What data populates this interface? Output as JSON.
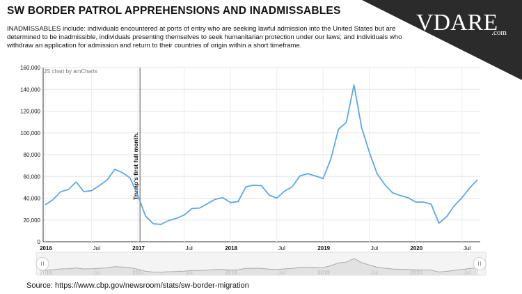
{
  "header": {
    "title": "SW BORDER PATROL APPREHENSIONS AND INADMISSABLES",
    "description": "INADMISSABLES include: individuals encountered at ports of entry who are seeking lawful admission into the United States but are determined to be inadmissible, individuals presenting themselves to seek humanitarian protection under our laws; and individuals who withdraw an application for admission and return to their countries of origin within a short timeframe."
  },
  "logo": {
    "text": "VDARE",
    "suffix": ".com",
    "background": "#2b2b2b"
  },
  "source": "Source: https://www.cbp.gov/newsroom/stats/sw-border-migration",
  "chart_data": {
    "type": "line",
    "credit": "JS chart by amCharts",
    "x": [
      "2016-01",
      "2016-02",
      "2016-03",
      "2016-04",
      "2016-05",
      "2016-06",
      "2016-07",
      "2016-08",
      "2016-09",
      "2016-10",
      "2016-11",
      "2016-12",
      "2017-01",
      "2017-02",
      "2017-03",
      "2017-04",
      "2017-05",
      "2017-06",
      "2017-07",
      "2017-08",
      "2017-09",
      "2017-10",
      "2017-11",
      "2017-12",
      "2018-01",
      "2018-02",
      "2018-03",
      "2018-04",
      "2018-05",
      "2018-06",
      "2018-07",
      "2018-08",
      "2018-09",
      "2018-10",
      "2018-11",
      "2018-12",
      "2019-01",
      "2019-02",
      "2019-03",
      "2019-04",
      "2019-05",
      "2019-06",
      "2019-07",
      "2019-08",
      "2019-09",
      "2019-10",
      "2019-11",
      "2019-12",
      "2020-01",
      "2020-02",
      "2020-03",
      "2020-04",
      "2020-05",
      "2020-06",
      "2020-07",
      "2020-08",
      "2020-09"
    ],
    "series": [
      {
        "values": [
          34000,
          38500,
          46000,
          48000,
          55000,
          46000,
          47000,
          51500,
          56500,
          66500,
          63500,
          58500,
          42500,
          23500,
          16500,
          16000,
          19500,
          21500,
          24500,
          30500,
          31000,
          35000,
          39000,
          40500,
          36000,
          37000,
          50500,
          52000,
          51500,
          43000,
          40000,
          46500,
          50500,
          60500,
          62500,
          60500,
          58000,
          76000,
          103500,
          109500,
          144000,
          104500,
          82000,
          62500,
          52500,
          45000,
          42500,
          40500,
          36500,
          36500,
          34500,
          17000,
          23000,
          33000,
          40500,
          49500,
          57000
        ],
        "color": "#5aa8e8"
      }
    ],
    "y_ticks": [
      "0",
      "20,000",
      "40,000",
      "60,000",
      "80,000",
      "100,000",
      "120,000",
      "140,000",
      "160,000"
    ],
    "ylim": [
      0,
      160000
    ],
    "x_ticks": [
      {
        "label": "2016",
        "at": "2016-01",
        "bold": true
      },
      {
        "label": "Jul",
        "at": "2016-07",
        "bold": false
      },
      {
        "label": "2017",
        "at": "2017-01",
        "bold": true
      },
      {
        "label": "Jul",
        "at": "2017-07",
        "bold": false
      },
      {
        "label": "2018",
        "at": "2018-01",
        "bold": true
      },
      {
        "label": "Jul",
        "at": "2018-07",
        "bold": false
      },
      {
        "label": "2019",
        "at": "2019-01",
        "bold": true
      },
      {
        "label": "Jul",
        "at": "2019-07",
        "bold": false
      },
      {
        "label": "2020",
        "at": "2020-01",
        "bold": true
      },
      {
        "label": "Jul",
        "at": "2020-07",
        "bold": false
      }
    ],
    "annotation": {
      "text": "Trump's first full month.",
      "at": "2017-02"
    },
    "grid": true,
    "scrollbar": true
  }
}
